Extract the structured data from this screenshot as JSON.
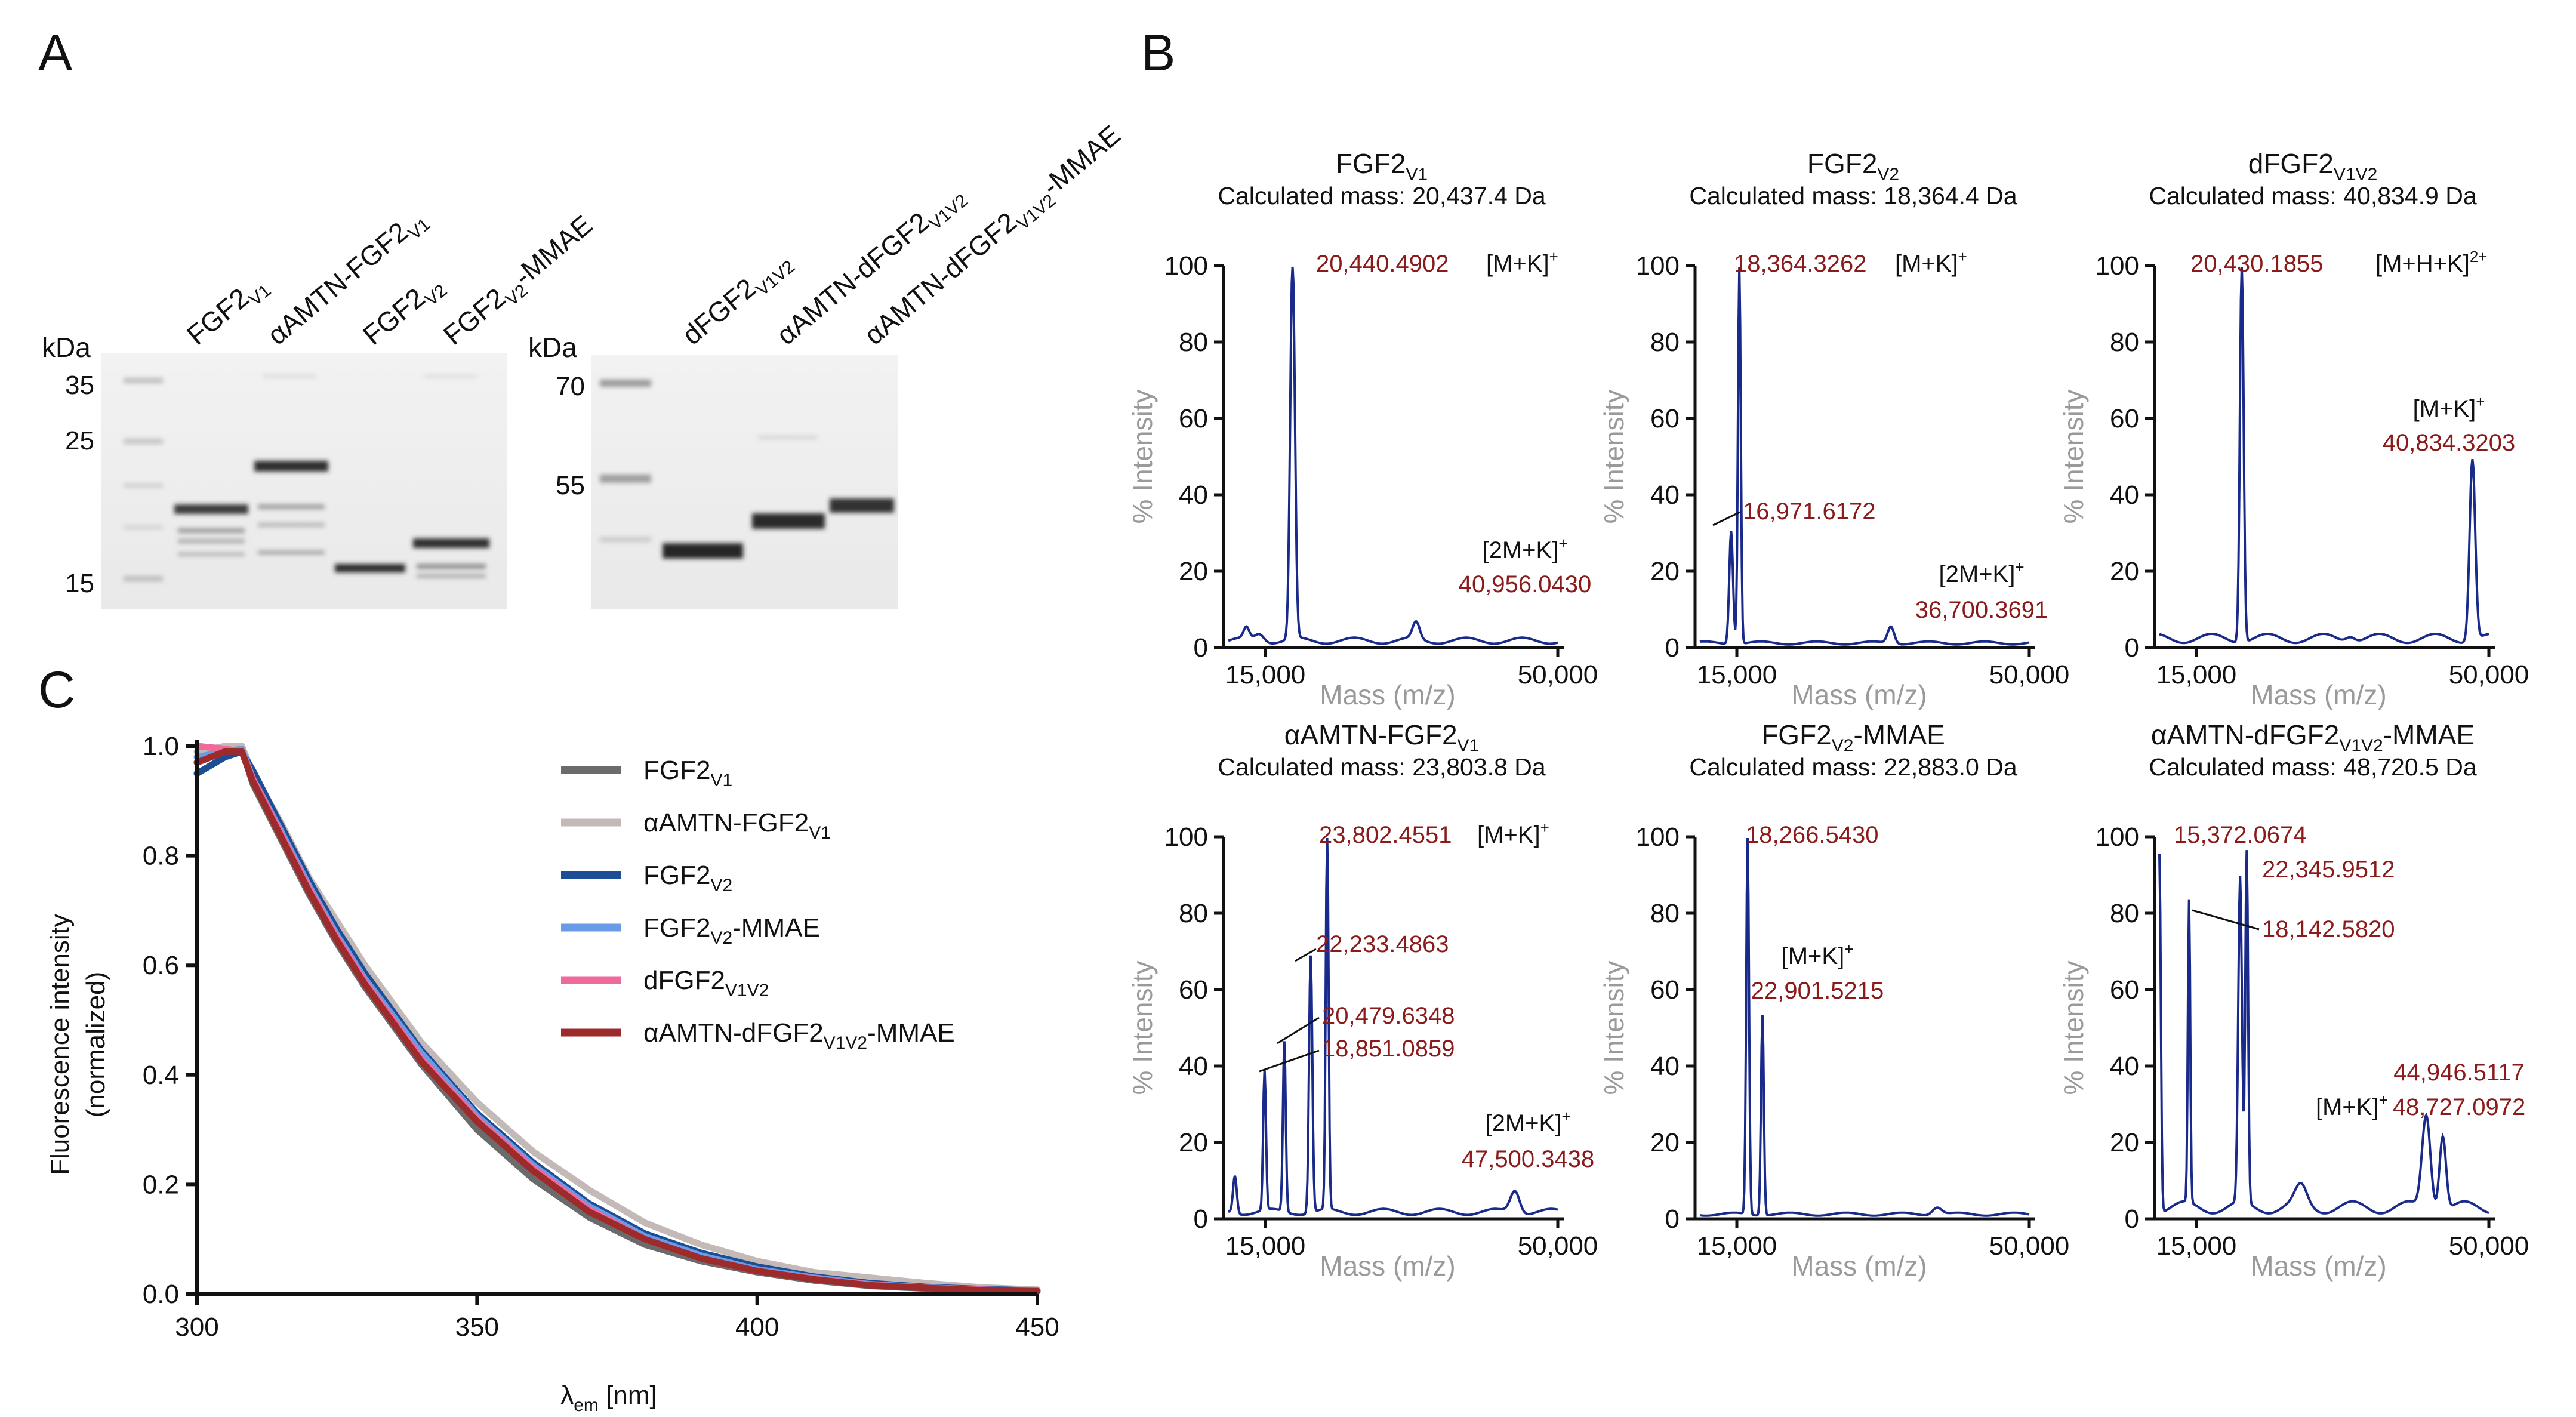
{
  "panels": {
    "a": "A",
    "b": "B",
    "c": "C"
  },
  "gel1": {
    "kda_label": "kDa",
    "markers": [
      "35",
      "25",
      "15"
    ],
    "lanes": [
      {
        "base": "FGF2",
        "sub": "V1",
        "pre": "",
        "post": ""
      },
      {
        "base": "αAMTN-FGF2",
        "sub": "V1",
        "pre": "",
        "post": ""
      },
      {
        "base": "FGF2",
        "sub": "V2",
        "pre": "",
        "post": ""
      },
      {
        "base": "FGF2",
        "sub": "V2",
        "pre": "",
        "post": "-MMAE"
      }
    ]
  },
  "gel2": {
    "kda_label": "kDa",
    "markers": [
      "70",
      "55"
    ],
    "lanes": [
      {
        "base": "dFGF2",
        "sub": "V1V2",
        "post": ""
      },
      {
        "base": "αAMTN-dFGF2",
        "sub": "V1V2",
        "post": ""
      },
      {
        "base": "αAMTN-dFGF2",
        "sub": "V1V2",
        "post": "-MMAE"
      }
    ]
  },
  "ms": {
    "ylabel": "% Intensity",
    "xlabel": "Mass (m/z)",
    "yticks": [
      "0",
      "20",
      "40",
      "60",
      "80",
      "100"
    ],
    "xticks": [
      "15,000",
      "50,000"
    ],
    "spectra": [
      {
        "title": "FGF2",
        "sub": "V1",
        "post": "",
        "calc": "Calculated mass: 20,437.4 Da",
        "p1": "20,440.4902",
        "p1ion": "[M+K]",
        "p1sup": "+",
        "p2ion": "[2M+K]",
        "p2sup": "+",
        "p2": "40,956.0430"
      },
      {
        "title": "FGF2",
        "sub": "V2",
        "post": "",
        "calc": "Calculated mass: 18,364.4 Da",
        "p1": "18,364.3262",
        "p1ion": "[M+K]",
        "p1sup": "+",
        "p3": "16,971.6172",
        "p2ion": "[2M+K]",
        "p2sup": "+",
        "p2": "36,700.3691"
      },
      {
        "title": "dFGF2",
        "sub": "V1V2",
        "post": "",
        "calc": "Calculated mass: 40,834.9 Da",
        "p1": "20,430.1855",
        "p1ion": "[M+H+K]",
        "p1sup": "2+",
        "p2ion": "[M+K]",
        "p2sup": "+",
        "p2": "40,834.3203"
      },
      {
        "title": "αAMTN-FGF2",
        "sub": "V1",
        "post": "",
        "calc": "Calculated mass: 23,803.8 Da",
        "p1": "23,802.4551",
        "p1ion": "[M+K]",
        "p1sup": "+",
        "p3": "22,233.4863",
        "p4": "20,479.6348",
        "p5": "18,851.0859",
        "p2ion": "[2M+K]",
        "p2sup": "+",
        "p2": "47,500.3438"
      },
      {
        "title": "FGF2",
        "sub": "V2",
        "post": "-MMAE",
        "calc": "Calculated mass: 22,883.0 Da",
        "p1": "18,266.5430",
        "p2ion": "[M+K]",
        "p2sup": "+",
        "p2": "22,901.5215"
      },
      {
        "title": "αAMTN-dFGF2",
        "sub": "V1V2",
        "post": "-MMAE",
        "calc": "Calculated mass: 48,720.5 Da",
        "p1": "15,372.0674",
        "p3": "22,345.9512",
        "p4": "18,142.5820",
        "p5": "44,946.5117",
        "p2ion": "[M+K]",
        "p2sup": "+",
        "p2": "48,727.0972"
      }
    ]
  },
  "chart_data": {
    "type": "line",
    "title": "",
    "xlabel_base": "λ",
    "xlabel_sub": "em",
    "xlabel_unit": " [nm]",
    "ylabel_line1": "Fluorescence intensity",
    "ylabel_line2": "(normalized)",
    "xlim": [
      300,
      450
    ],
    "ylim": [
      0,
      1.0
    ],
    "xticks": [
      "300",
      "350",
      "400",
      "450"
    ],
    "yticks": [
      "0.0",
      "0.2",
      "0.4",
      "0.6",
      "0.8",
      "1.0"
    ],
    "x": [
      300,
      305,
      308,
      310,
      315,
      320,
      325,
      330,
      340,
      350,
      360,
      370,
      380,
      390,
      400,
      410,
      420,
      430,
      440,
      450
    ],
    "series": [
      {
        "name": "FGF2",
        "sub": "V1",
        "post": "",
        "color": "#6b6b6b",
        "values": [
          0.97,
          0.99,
          0.995,
          0.93,
          0.83,
          0.73,
          0.64,
          0.56,
          0.42,
          0.3,
          0.21,
          0.14,
          0.09,
          0.06,
          0.04,
          0.025,
          0.015,
          0.01,
          0.007,
          0.005
        ]
      },
      {
        "name": "αAMTN-FGF2",
        "sub": "V1",
        "post": "",
        "color": "#c3b9b7",
        "values": [
          0.99,
          1.0,
          1.0,
          0.95,
          0.86,
          0.76,
          0.68,
          0.6,
          0.46,
          0.35,
          0.26,
          0.19,
          0.13,
          0.09,
          0.06,
          0.04,
          0.03,
          0.02,
          0.012,
          0.008
        ]
      },
      {
        "name": "FGF2",
        "sub": "V2",
        "post": "",
        "color": "#1c4e96",
        "values": [
          0.95,
          0.98,
          0.99,
          0.955,
          0.855,
          0.755,
          0.665,
          0.585,
          0.445,
          0.33,
          0.24,
          0.165,
          0.11,
          0.075,
          0.05,
          0.032,
          0.02,
          0.013,
          0.009,
          0.006
        ]
      },
      {
        "name": "FGF2",
        "sub": "V2",
        "post": "-MMAE",
        "color": "#6a9be8",
        "values": [
          0.98,
          0.99,
          0.995,
          0.94,
          0.845,
          0.745,
          0.655,
          0.575,
          0.44,
          0.325,
          0.235,
          0.16,
          0.105,
          0.07,
          0.045,
          0.03,
          0.018,
          0.012,
          0.008,
          0.006
        ]
      },
      {
        "name": "dFGF2",
        "sub": "V1V2",
        "post": "",
        "color": "#ee6a9c",
        "values": [
          1.0,
          0.995,
          0.99,
          0.94,
          0.84,
          0.74,
          0.65,
          0.57,
          0.43,
          0.32,
          0.23,
          0.155,
          0.1,
          0.065,
          0.042,
          0.028,
          0.017,
          0.011,
          0.008,
          0.005
        ]
      },
      {
        "name": "αAMTN-dFGF2",
        "sub": "V1V2",
        "post": "-MMAE",
        "color": "#9e2b2b",
        "values": [
          0.97,
          0.99,
          0.99,
          0.935,
          0.835,
          0.735,
          0.645,
          0.565,
          0.425,
          0.315,
          0.225,
          0.15,
          0.1,
          0.065,
          0.042,
          0.027,
          0.016,
          0.011,
          0.007,
          0.005
        ]
      }
    ]
  }
}
